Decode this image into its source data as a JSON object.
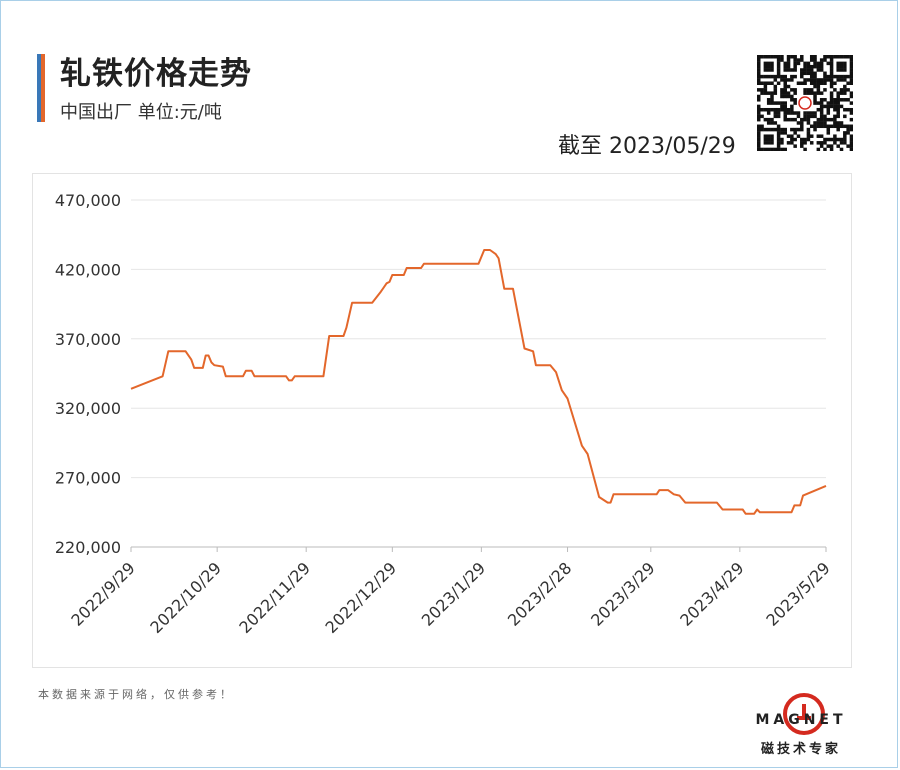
{
  "header": {
    "title": "轧铁价格走势",
    "subtitle": "中国出厂  单位:元/吨",
    "as_of": "截至 2023/05/29",
    "accent_colors": [
      "#3a78b8",
      "#e3672b"
    ]
  },
  "qr_code": {
    "icon": "qr-code-icon"
  },
  "footer": {
    "note": "本数据来源于网络，仅供参考！",
    "logo_word": "MAGNET",
    "logo_subtitle": "磁技术专家",
    "logo_color": "#d42a1f"
  },
  "chart_data": {
    "type": "line",
    "x_type": "date",
    "xlim": [
      "2022-09-29",
      "2023-05-29"
    ],
    "x_ticks": [
      "2022-09-29",
      "2022-10-29",
      "2022-11-29",
      "2022-12-29",
      "2023-01-29",
      "2023-02-28",
      "2023-03-29",
      "2023-04-29",
      "2023-05-29"
    ],
    "x_tick_labels": [
      "2022/9/29",
      "2022/10/29",
      "2022/11/29",
      "2022/12/29",
      "2023/1/29",
      "2023/2/28",
      "2023/3/29",
      "2023/4/29",
      "2023/5/29"
    ],
    "ylim": [
      220000,
      470000
    ],
    "y_ticks": [
      220000,
      270000,
      320000,
      370000,
      420000,
      470000
    ],
    "y_tick_labels": [
      "220,000",
      "270,000",
      "320,000",
      "370,000",
      "420,000",
      "470,000"
    ],
    "grid": "horizontal",
    "line_color": "#e3672b",
    "series": [
      {
        "points": [
          [
            "2022-09-29",
            334000
          ],
          [
            "2022-10-10",
            343000
          ],
          [
            "2022-10-12",
            361000
          ],
          [
            "2022-10-18",
            361000
          ],
          [
            "2022-10-20",
            355000
          ],
          [
            "2022-10-21",
            349000
          ],
          [
            "2022-10-24",
            349000
          ],
          [
            "2022-10-25",
            358000
          ],
          [
            "2022-10-26",
            358000
          ],
          [
            "2022-10-27",
            353000
          ],
          [
            "2022-10-28",
            351000
          ],
          [
            "2022-10-31",
            350000
          ],
          [
            "2022-11-01",
            343000
          ],
          [
            "2022-11-07",
            343000
          ],
          [
            "2022-11-08",
            347000
          ],
          [
            "2022-11-10",
            347000
          ],
          [
            "2022-11-11",
            343000
          ],
          [
            "2022-11-22",
            343000
          ],
          [
            "2022-11-23",
            340000
          ],
          [
            "2022-11-24",
            340000
          ],
          [
            "2022-11-25",
            343000
          ],
          [
            "2022-12-05",
            343000
          ],
          [
            "2022-12-07",
            372000
          ],
          [
            "2022-12-12",
            372000
          ],
          [
            "2022-12-13",
            378000
          ],
          [
            "2022-12-15",
            396000
          ],
          [
            "2022-12-22",
            396000
          ],
          [
            "2022-12-25",
            404000
          ],
          [
            "2022-12-27",
            410000
          ],
          [
            "2022-12-28",
            411000
          ],
          [
            "2022-12-29",
            416000
          ],
          [
            "2023-01-02",
            416000
          ],
          [
            "2023-01-03",
            421000
          ],
          [
            "2023-01-08",
            421000
          ],
          [
            "2023-01-09",
            424000
          ],
          [
            "2023-01-28",
            424000
          ],
          [
            "2023-01-30",
            434000
          ],
          [
            "2023-02-01",
            434000
          ],
          [
            "2023-02-03",
            431000
          ],
          [
            "2023-02-04",
            428000
          ],
          [
            "2023-02-06",
            406000
          ],
          [
            "2023-02-09",
            406000
          ],
          [
            "2023-02-13",
            363000
          ],
          [
            "2023-02-16",
            361000
          ],
          [
            "2023-02-17",
            351000
          ],
          [
            "2023-02-22",
            351000
          ],
          [
            "2023-02-24",
            346000
          ],
          [
            "2023-02-26",
            333000
          ],
          [
            "2023-02-28",
            327000
          ],
          [
            "2023-03-05",
            293000
          ],
          [
            "2023-03-07",
            287000
          ],
          [
            "2023-03-11",
            256000
          ],
          [
            "2023-03-14",
            252000
          ],
          [
            "2023-03-15",
            252000
          ],
          [
            "2023-03-16",
            258000
          ],
          [
            "2023-03-31",
            258000
          ],
          [
            "2023-04-01",
            261000
          ],
          [
            "2023-04-04",
            261000
          ],
          [
            "2023-04-06",
            258000
          ],
          [
            "2023-04-08",
            257000
          ],
          [
            "2023-04-10",
            252000
          ],
          [
            "2023-04-21",
            252000
          ],
          [
            "2023-04-23",
            247000
          ],
          [
            "2023-04-30",
            247000
          ],
          [
            "2023-05-01",
            244000
          ],
          [
            "2023-05-04",
            244000
          ],
          [
            "2023-05-05",
            247000
          ],
          [
            "2023-05-06",
            245000
          ],
          [
            "2023-05-17",
            245000
          ],
          [
            "2023-05-18",
            250000
          ],
          [
            "2023-05-20",
            250000
          ],
          [
            "2023-05-21",
            257000
          ],
          [
            "2023-05-29",
            264000
          ]
        ]
      }
    ]
  }
}
